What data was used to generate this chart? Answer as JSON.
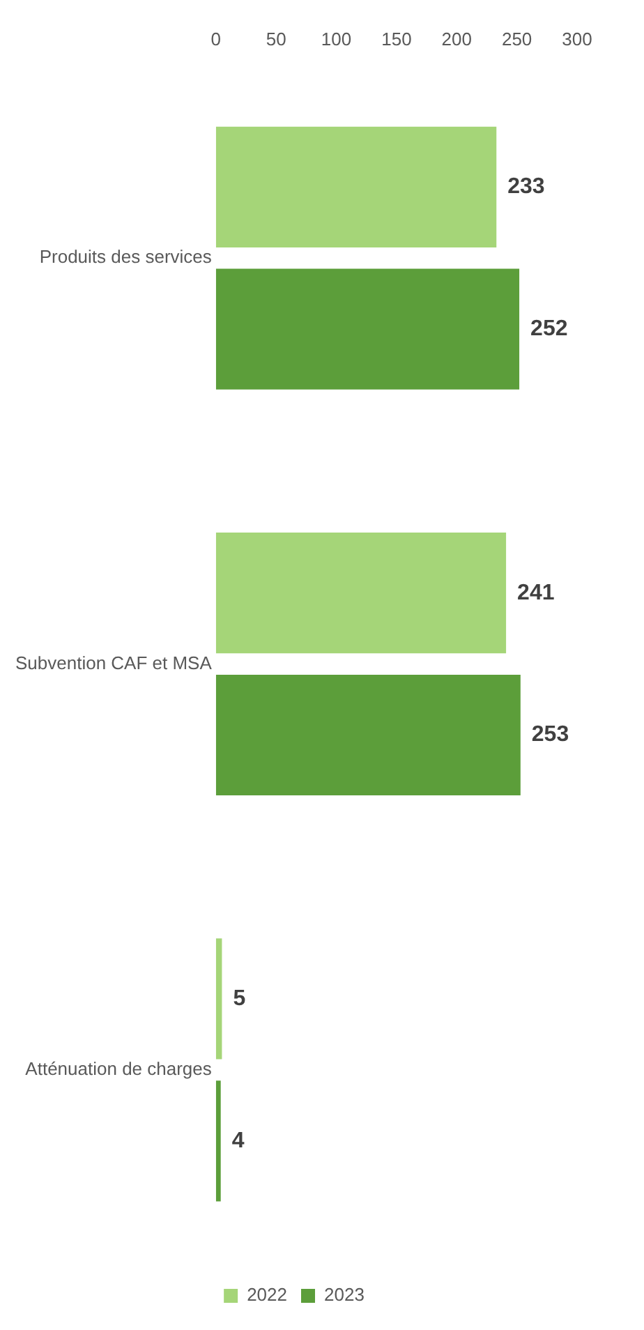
{
  "chart_data": {
    "type": "bar",
    "orientation": "horizontal",
    "categories": [
      "Produits des services",
      "Subvention CAF et MSA",
      "Atténuation de charges"
    ],
    "series": [
      {
        "name": "2022",
        "color": "#a5d578",
        "values": [
          233,
          241,
          5
        ]
      },
      {
        "name": "2023",
        "color": "#5c9e3a",
        "values": [
          252,
          253,
          4
        ]
      }
    ],
    "xlim": [
      0,
      300
    ],
    "xticks": [
      0,
      50,
      100,
      150,
      200,
      250,
      300
    ],
    "grid": false,
    "legend": "bottom",
    "data_labels": true
  }
}
